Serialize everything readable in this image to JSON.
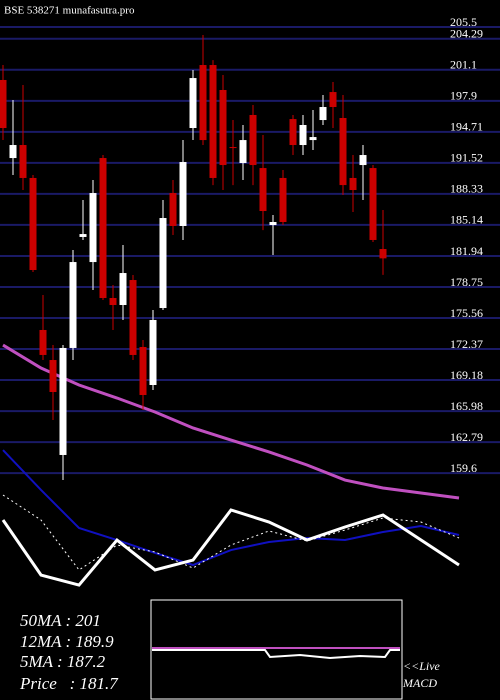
{
  "chart_data": {
    "type": "candlestick",
    "title": "BSE 538271 munafasutra.pro",
    "indicators": [
      "50MA : 201",
      "12MA : 189.9",
      "5MA : 187.2",
      "Price   : 181.7"
    ],
    "macd_label": [
      "<<Live",
      "MACD"
    ],
    "ylim": [
      146.55,
      208.28
    ],
    "yticks": [
      205.5,
      204.29,
      201.1,
      197.9,
      194.71,
      191.52,
      188.33,
      185.14,
      181.94,
      178.75,
      175.56,
      172.37,
      169.18,
      165.98,
      162.79,
      159.6
    ],
    "grid": true,
    "up_color": "#ffffff",
    "down_color": "#cc0000",
    "grid_color": "#1a1a66",
    "open": [
      200.05,
      192.02,
      193.36,
      189.97,
      174.33,
      171.24,
      161.47,
      172.48,
      183.9,
      181.32,
      192.02,
      177.62,
      176.9,
      179.47,
      172.58,
      168.67,
      176.59,
      188.42,
      185.03,
      195.11,
      201.59,
      201.59,
      199.02,
      193.15,
      191.51,
      196.45,
      190.99,
      185.13,
      189.97,
      196.03,
      193.36,
      193.87,
      195.93,
      198.81,
      196.14,
      189.97,
      191.3,
      190.99,
      182.66
    ],
    "high": [
      201.59,
      197.99,
      199.53,
      190.27,
      177.93,
      172.78,
      172.78,
      182.56,
      187.7,
      189.76,
      192.33,
      178.96,
      183.07,
      179.99,
      173.3,
      176.38,
      187.7,
      189.76,
      193.87,
      201.08,
      204.68,
      202.1,
      200.56,
      195.93,
      195.42,
      197.48,
      194.39,
      186.16,
      190.79,
      196.45,
      196.45,
      196.96,
      198.5,
      199.84,
      198.5,
      192.33,
      193.36,
      191.3,
      186.67
    ],
    "low": [
      193.87,
      190.27,
      188.73,
      180.29,
      171.24,
      165.07,
      158.89,
      171.24,
      183.59,
      178.44,
      177.41,
      174.33,
      175.36,
      171.24,
      166.1,
      168.15,
      176.38,
      184.1,
      183.59,
      193.87,
      193.36,
      189.24,
      188.73,
      189.24,
      189.76,
      189.24,
      184.61,
      182.04,
      185.13,
      192.33,
      192.33,
      192.85,
      195.42,
      195.11,
      188.22,
      186.47,
      187.7,
      183.38,
      180.0
    ],
    "close": [
      195.11,
      193.36,
      189.97,
      180.5,
      171.76,
      167.95,
      172.48,
      181.32,
      184.2,
      188.42,
      177.62,
      176.9,
      180.19,
      171.76,
      167.64,
      175.36,
      185.85,
      185.03,
      191.61,
      200.25,
      193.87,
      189.97,
      191.3,
      193.05,
      193.87,
      191.3,
      186.57,
      185.44,
      185.44,
      193.36,
      195.42,
      194.18,
      197.27,
      197.27,
      189.24,
      188.73,
      192.33,
      183.59,
      181.7
    ],
    "lines": [
      {
        "color": "#c050c0",
        "width": 3,
        "dash": false,
        "x": [
          0,
          3.8,
          7.6,
          11.4,
          15.2,
          19,
          22.8,
          26.6,
          30.4,
          34.2,
          38,
          41.8,
          45.6
        ],
        "values": [
          172.78,
          170.42,
          168.67,
          167.33,
          165.89,
          164.25,
          163.01,
          161.78,
          160.44,
          158.89,
          158.07,
          157.56,
          157.04
        ]
      },
      {
        "color": "#1010c0",
        "width": 2,
        "dash": false,
        "x": [
          0,
          3.8,
          7.6,
          11.4,
          15.2,
          19,
          22.8,
          26.6,
          30.4,
          34.2,
          38,
          41.8,
          45.6
        ],
        "values": [
          161.98,
          157.87,
          153.96,
          152.72,
          151.39,
          150.15,
          151.69,
          152.52,
          152.93,
          152.72,
          153.55,
          154.16,
          153.24
        ]
      },
      {
        "color": "#ffffff",
        "width": 3,
        "dash": false,
        "x": [
          0,
          3.8,
          7.6,
          11.4,
          15.2,
          19,
          22.8,
          26.6,
          30.4,
          34.2,
          38,
          41.8,
          45.6
        ],
        "values": [
          154.78,
          149.12,
          148.09,
          152.72,
          149.64,
          150.66,
          155.81,
          154.57,
          152.72,
          154.06,
          155.29,
          152.72,
          150.15
        ]
      },
      {
        "color": "#ffffff",
        "width": 1,
        "dash": true,
        "x": [
          0,
          3.8,
          7.6,
          11.4,
          15.2,
          19,
          22.8,
          26.6,
          30.4,
          34.2,
          38,
          41.8,
          45.6
        ],
        "values": [
          157.35,
          154.78,
          149.64,
          152.21,
          151.49,
          149.84,
          152.21,
          153.65,
          152.62,
          153.75,
          154.99,
          154.57,
          152.93
        ]
      }
    ]
  }
}
